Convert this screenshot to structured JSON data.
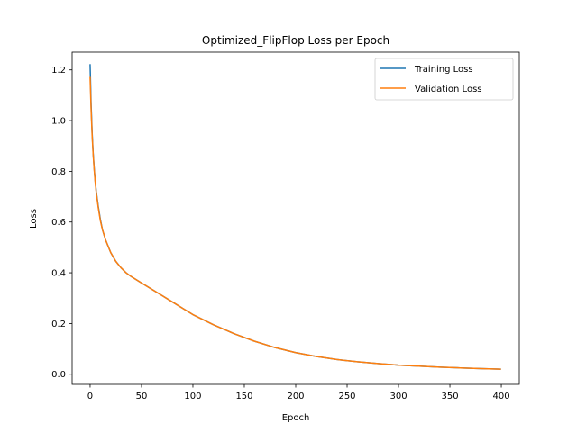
{
  "chart_data": {
    "type": "line",
    "title": "Optimized_FlipFlop Loss per Epoch",
    "xlabel": "Epoch",
    "ylabel": "Loss",
    "xlim": [
      -17.5,
      417.5
    ],
    "ylim": [
      -0.04,
      1.27
    ],
    "xticks": [
      0,
      50,
      100,
      150,
      200,
      250,
      300,
      350,
      400
    ],
    "yticks": [
      0.0,
      0.2,
      0.4,
      0.6,
      0.8,
      1.0,
      1.2
    ],
    "xtick_labels": [
      "0",
      "50",
      "100",
      "150",
      "200",
      "250",
      "300",
      "350",
      "400"
    ],
    "ytick_labels": [
      "0.0",
      "0.2",
      "0.4",
      "0.6",
      "0.8",
      "1.0",
      "1.2"
    ],
    "grid": false,
    "legend_position": "top-right",
    "x": [
      0,
      1,
      2,
      3,
      4,
      5,
      6,
      8,
      10,
      12,
      15,
      18,
      20,
      25,
      30,
      35,
      40,
      50,
      60,
      70,
      80,
      90,
      100,
      120,
      140,
      160,
      180,
      200,
      220,
      240,
      260,
      280,
      300,
      320,
      340,
      360,
      380,
      399
    ],
    "series": [
      {
        "name": "Training Loss",
        "color": "#1f77b4",
        "values": [
          1.22,
          1.06,
          0.95,
          0.87,
          0.81,
          0.76,
          0.72,
          0.66,
          0.61,
          0.57,
          0.53,
          0.5,
          0.48,
          0.445,
          0.42,
          0.4,
          0.385,
          0.36,
          0.335,
          0.31,
          0.285,
          0.26,
          0.235,
          0.195,
          0.16,
          0.13,
          0.105,
          0.085,
          0.07,
          0.058,
          0.049,
          0.042,
          0.036,
          0.032,
          0.028,
          0.025,
          0.022,
          0.02
        ]
      },
      {
        "name": "Validation Loss",
        "color": "#ff7f0e",
        "values": [
          1.17,
          1.04,
          0.94,
          0.865,
          0.805,
          0.755,
          0.715,
          0.655,
          0.605,
          0.57,
          0.53,
          0.5,
          0.48,
          0.445,
          0.42,
          0.4,
          0.385,
          0.36,
          0.335,
          0.31,
          0.285,
          0.26,
          0.235,
          0.195,
          0.16,
          0.13,
          0.105,
          0.085,
          0.07,
          0.058,
          0.049,
          0.042,
          0.036,
          0.032,
          0.028,
          0.025,
          0.022,
          0.02
        ]
      }
    ]
  }
}
